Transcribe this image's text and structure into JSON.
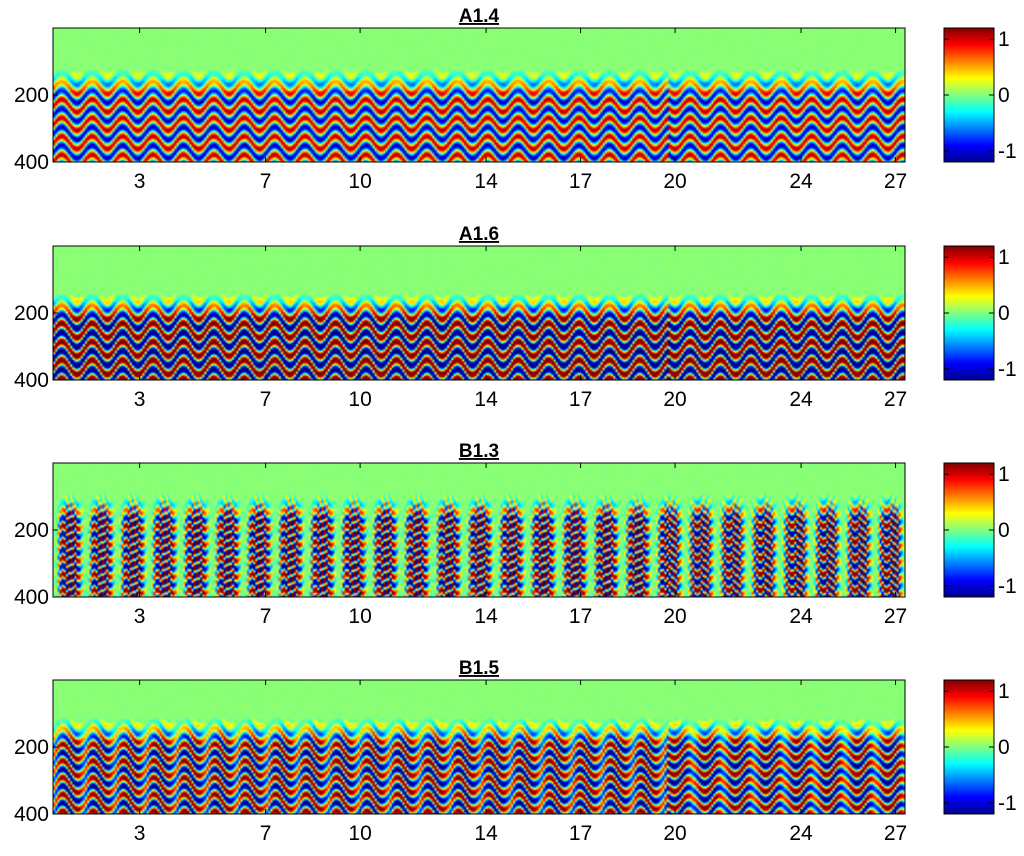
{
  "chart_data": [
    {
      "type": "heatmap",
      "title": "A1.4",
      "x_ticks": [
        "3",
        "7",
        "10",
        "14",
        "17",
        "20",
        "24",
        "27"
      ],
      "x_tick_values": [
        3,
        7,
        10,
        14,
        17,
        20,
        24,
        27
      ],
      "xlim": [
        0.25,
        27.3
      ],
      "y_ticks": [
        "200",
        "400"
      ],
      "y_tick_values": [
        200,
        400
      ],
      "ylim": [
        0,
        400
      ],
      "y_reversed": true,
      "colorbar": {
        "ticks": [
          "1",
          "0",
          "-1"
        ],
        "tick_values": [
          1,
          0,
          -1
        ],
        "range": [
          -1.2,
          1.2
        ],
        "colormap": "jet"
      },
      "pattern": {
        "cycles": 28,
        "band_onset_y": 120,
        "band_period_y": 55,
        "stretch": 0.35,
        "gain": 0.9,
        "arch": 0
      }
    },
    {
      "type": "heatmap",
      "title": "A1.6",
      "x_ticks": [
        "3",
        "7",
        "10",
        "14",
        "17",
        "20",
        "24",
        "27"
      ],
      "x_tick_values": [
        3,
        7,
        10,
        14,
        17,
        20,
        24,
        27
      ],
      "xlim": [
        0.25,
        27.3
      ],
      "y_ticks": [
        "200",
        "400"
      ],
      "y_tick_values": [
        200,
        400
      ],
      "ylim": [
        0,
        400
      ],
      "y_reversed": true,
      "colorbar": {
        "ticks": [
          "1",
          "0",
          "-1"
        ],
        "tick_values": [
          1,
          0,
          -1
        ],
        "range": [
          -1.2,
          1.2
        ],
        "colormap": "jet"
      },
      "pattern": {
        "cycles": 28,
        "band_onset_y": 140,
        "band_period_y": 55,
        "stretch": 0.4,
        "gain": 1.2,
        "arch": 0
      }
    },
    {
      "type": "heatmap",
      "title": "B1.3",
      "x_ticks": [
        "3",
        "7",
        "10",
        "14",
        "17",
        "20",
        "24",
        "27"
      ],
      "x_tick_values": [
        3,
        7,
        10,
        14,
        17,
        20,
        24,
        27
      ],
      "xlim": [
        0.25,
        27.3
      ],
      "y_ticks": [
        "200",
        "400"
      ],
      "y_tick_values": [
        200,
        400
      ],
      "ylim": [
        0,
        400
      ],
      "y_reversed": true,
      "colorbar": {
        "ticks": [
          "1",
          "0",
          "-1"
        ],
        "tick_values": [
          1,
          0,
          -1
        ],
        "range": [
          -1.2,
          1.2
        ],
        "colormap": "jet"
      },
      "pattern": {
        "cycles": 27,
        "band_onset_y": 115,
        "band_period_y": 48,
        "stretch": 1.1,
        "gain": 1.2,
        "arch": 1
      }
    },
    {
      "type": "heatmap",
      "title": "B1.5",
      "x_ticks": [
        "3",
        "7",
        "10",
        "14",
        "17",
        "20",
        "24",
        "27"
      ],
      "x_tick_values": [
        3,
        7,
        10,
        14,
        17,
        20,
        24,
        27
      ],
      "xlim": [
        0.25,
        27.3
      ],
      "y_ticks": [
        "200",
        "400"
      ],
      "y_tick_values": [
        200,
        400
      ],
      "ylim": [
        0,
        400
      ],
      "y_reversed": true,
      "colorbar": {
        "ticks": [
          "1",
          "0",
          "-1"
        ],
        "tick_values": [
          1,
          0,
          -1
        ],
        "range": [
          -1.2,
          1.2
        ],
        "colormap": "jet"
      },
      "pattern": {
        "cycles": 28,
        "band_onset_y": 120,
        "band_period_y": 50,
        "stretch": 0.45,
        "gain": 1.15,
        "arch": 0.4
      }
    }
  ]
}
